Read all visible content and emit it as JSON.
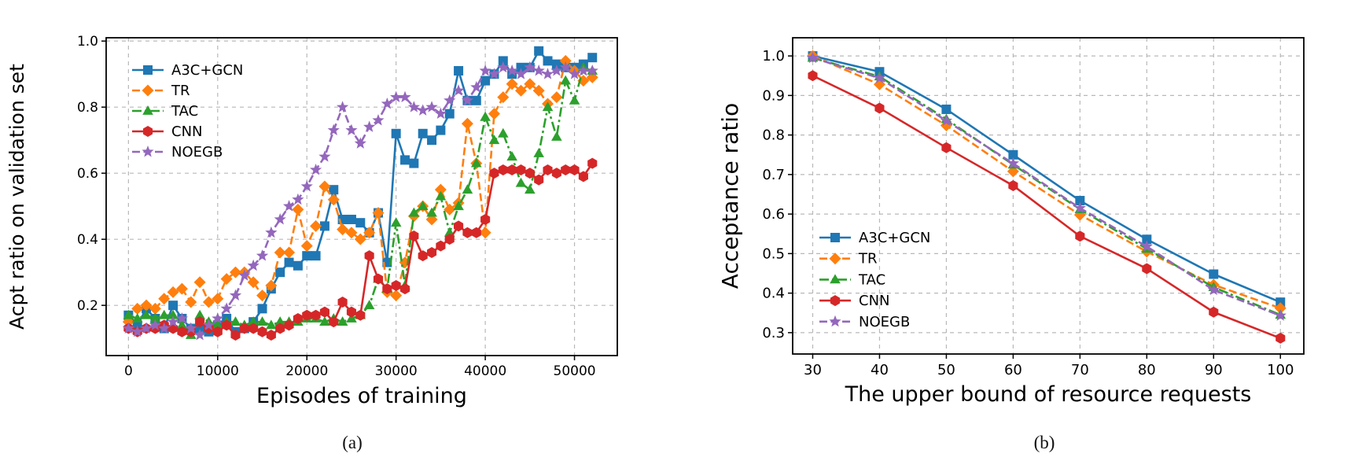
{
  "page": {
    "background": "#ffffff"
  },
  "captions": {
    "a": "(a)",
    "b": "(b)"
  },
  "chart_data": [
    {
      "id": "a",
      "type": "line",
      "title": "",
      "xlabel": "Episodes of training",
      "ylabel": "Acpt ratio on validation set",
      "xlim": [
        -2500,
        54800
      ],
      "ylim": [
        0.048,
        1.01
      ],
      "xticks": [
        0,
        10000,
        20000,
        30000,
        40000,
        50000
      ],
      "xtick_labels": [
        "0",
        "10000",
        "20000",
        "30000",
        "40000",
        "50000"
      ],
      "yticks": [
        0.2,
        0.4,
        0.6,
        0.8,
        1.0
      ],
      "ytick_labels": [
        "0.2",
        "0.4",
        "0.6",
        "0.8",
        "1.0"
      ],
      "grid": true,
      "legend_position": "upper-left",
      "x": [
        0,
        1000,
        2000,
        3000,
        4000,
        5000,
        6000,
        7000,
        8000,
        9000,
        10000,
        11000,
        12000,
        13000,
        14000,
        15000,
        16000,
        17000,
        18000,
        19000,
        20000,
        21000,
        22000,
        23000,
        24000,
        25000,
        26000,
        27000,
        28000,
        29000,
        30000,
        31000,
        32000,
        33000,
        34000,
        35000,
        36000,
        37000,
        38000,
        39000,
        40000,
        41000,
        42000,
        43000,
        44000,
        45000,
        46000,
        47000,
        48000,
        49000,
        50000,
        51000,
        52000
      ],
      "series": [
        {
          "name": "A3C+GCN",
          "color": "#1f77b4",
          "linestyle": "solid",
          "marker": "square",
          "values": [
            0.17,
            0.14,
            0.19,
            0.16,
            0.13,
            0.2,
            0.16,
            0.13,
            0.13,
            0.12,
            0.14,
            0.16,
            0.12,
            0.13,
            0.15,
            0.19,
            0.25,
            0.3,
            0.33,
            0.32,
            0.35,
            0.35,
            0.44,
            0.55,
            0.46,
            0.46,
            0.45,
            0.42,
            0.48,
            0.33,
            0.72,
            0.64,
            0.63,
            0.72,
            0.7,
            0.73,
            0.78,
            0.91,
            0.82,
            0.82,
            0.88,
            0.9,
            0.94,
            0.9,
            0.92,
            0.92,
            0.97,
            0.94,
            0.93,
            0.92,
            0.92,
            0.93,
            0.95
          ]
        },
        {
          "name": "TR",
          "color": "#ff7f0e",
          "linestyle": "dashed",
          "marker": "diamond",
          "values": [
            0.15,
            0.19,
            0.2,
            0.19,
            0.22,
            0.24,
            0.25,
            0.21,
            0.27,
            0.21,
            0.22,
            0.28,
            0.3,
            0.3,
            0.27,
            0.23,
            0.26,
            0.36,
            0.36,
            0.49,
            0.38,
            0.44,
            0.56,
            0.52,
            0.43,
            0.42,
            0.4,
            0.42,
            0.48,
            0.24,
            0.23,
            0.33,
            0.47,
            0.5,
            0.46,
            0.55,
            0.49,
            0.51,
            0.75,
            0.63,
            0.42,
            0.78,
            0.83,
            0.87,
            0.85,
            0.87,
            0.85,
            0.81,
            0.83,
            0.94,
            0.91,
            0.88,
            0.89
          ]
        },
        {
          "name": "TAC",
          "color": "#2ca02c",
          "linestyle": "dashdot",
          "marker": "triangle",
          "values": [
            0.17,
            0.16,
            0.17,
            0.16,
            0.17,
            0.17,
            0.14,
            0.11,
            0.17,
            0.15,
            0.14,
            0.15,
            0.15,
            0.14,
            0.15,
            0.15,
            0.14,
            0.15,
            0.15,
            0.15,
            0.16,
            0.16,
            0.15,
            0.16,
            0.15,
            0.16,
            0.17,
            0.2,
            0.28,
            0.25,
            0.45,
            0.26,
            0.48,
            0.5,
            0.48,
            0.53,
            0.42,
            0.5,
            0.55,
            0.63,
            0.77,
            0.7,
            0.72,
            0.65,
            0.57,
            0.55,
            0.66,
            0.8,
            0.71,
            0.88,
            0.82,
            0.92,
            0.91
          ]
        },
        {
          "name": "CNN",
          "color": "#d62728",
          "linestyle": "solid",
          "marker": "hexagon",
          "values": [
            0.13,
            0.12,
            0.13,
            0.13,
            0.14,
            0.13,
            0.12,
            0.12,
            0.15,
            0.13,
            0.12,
            0.14,
            0.11,
            0.13,
            0.13,
            0.12,
            0.11,
            0.13,
            0.14,
            0.16,
            0.17,
            0.17,
            0.18,
            0.15,
            0.21,
            0.18,
            0.17,
            0.35,
            0.28,
            0.25,
            0.26,
            0.25,
            0.41,
            0.35,
            0.36,
            0.38,
            0.4,
            0.44,
            0.42,
            0.42,
            0.46,
            0.6,
            0.61,
            0.61,
            0.61,
            0.6,
            0.58,
            0.61,
            0.6,
            0.61,
            0.61,
            0.59,
            0.63
          ]
        },
        {
          "name": "NOEGB",
          "color": "#9467bd",
          "linestyle": "dashed",
          "marker": "star",
          "values": [
            0.13,
            0.12,
            0.13,
            0.14,
            0.13,
            0.15,
            0.16,
            0.13,
            0.11,
            0.14,
            0.16,
            0.19,
            0.23,
            0.29,
            0.32,
            0.35,
            0.42,
            0.46,
            0.5,
            0.52,
            0.56,
            0.61,
            0.65,
            0.73,
            0.8,
            0.73,
            0.69,
            0.74,
            0.76,
            0.81,
            0.83,
            0.83,
            0.8,
            0.79,
            0.8,
            0.78,
            0.82,
            0.85,
            0.82,
            0.86,
            0.91,
            0.9,
            0.92,
            0.91,
            0.9,
            0.92,
            0.91,
            0.9,
            0.91,
            0.92,
            0.9,
            0.91,
            0.91
          ]
        }
      ]
    },
    {
      "id": "b",
      "type": "line",
      "title": "",
      "xlabel": "The upper bound of resource requests",
      "ylabel": "Acceptance ratio",
      "xlim": [
        27,
        103.5
      ],
      "ylim": [
        0.246,
        1.046
      ],
      "xticks": [
        30,
        40,
        50,
        60,
        70,
        80,
        90,
        100
      ],
      "xtick_labels": [
        "30",
        "40",
        "50",
        "60",
        "70",
        "80",
        "90",
        "100"
      ],
      "yticks": [
        0.3,
        0.4,
        0.5,
        0.6,
        0.7,
        0.8,
        0.9,
        1.0
      ],
      "ytick_labels": [
        "0.3",
        "0.4",
        "0.5",
        "0.6",
        "0.7",
        "0.8",
        "0.9",
        "1.0"
      ],
      "grid": true,
      "legend_position": "center-left",
      "x": [
        30,
        40,
        50,
        60,
        70,
        80,
        90,
        100
      ],
      "series": [
        {
          "name": "A3C+GCN",
          "color": "#1f77b4",
          "linestyle": "solid",
          "marker": "square",
          "values": [
            1.0,
            0.96,
            0.865,
            0.75,
            0.634,
            0.536,
            0.448,
            0.377
          ]
        },
        {
          "name": "TR",
          "color": "#ff7f0e",
          "linestyle": "dashed",
          "marker": "diamond",
          "values": [
            1.0,
            0.928,
            0.824,
            0.708,
            0.598,
            0.505,
            0.421,
            0.362
          ]
        },
        {
          "name": "TAC",
          "color": "#2ca02c",
          "linestyle": "dashdot",
          "marker": "triangle",
          "values": [
            0.995,
            0.948,
            0.84,
            0.725,
            0.612,
            0.512,
            0.415,
            0.345
          ]
        },
        {
          "name": "CNN",
          "color": "#d62728",
          "linestyle": "solid",
          "marker": "hexagon",
          "values": [
            0.95,
            0.868,
            0.768,
            0.672,
            0.544,
            0.462,
            0.352,
            0.286
          ]
        },
        {
          "name": "NOEGB",
          "color": "#9467bd",
          "linestyle": "dashed",
          "marker": "star",
          "values": [
            0.995,
            0.944,
            0.836,
            0.728,
            0.615,
            0.518,
            0.408,
            0.343
          ]
        }
      ]
    }
  ]
}
